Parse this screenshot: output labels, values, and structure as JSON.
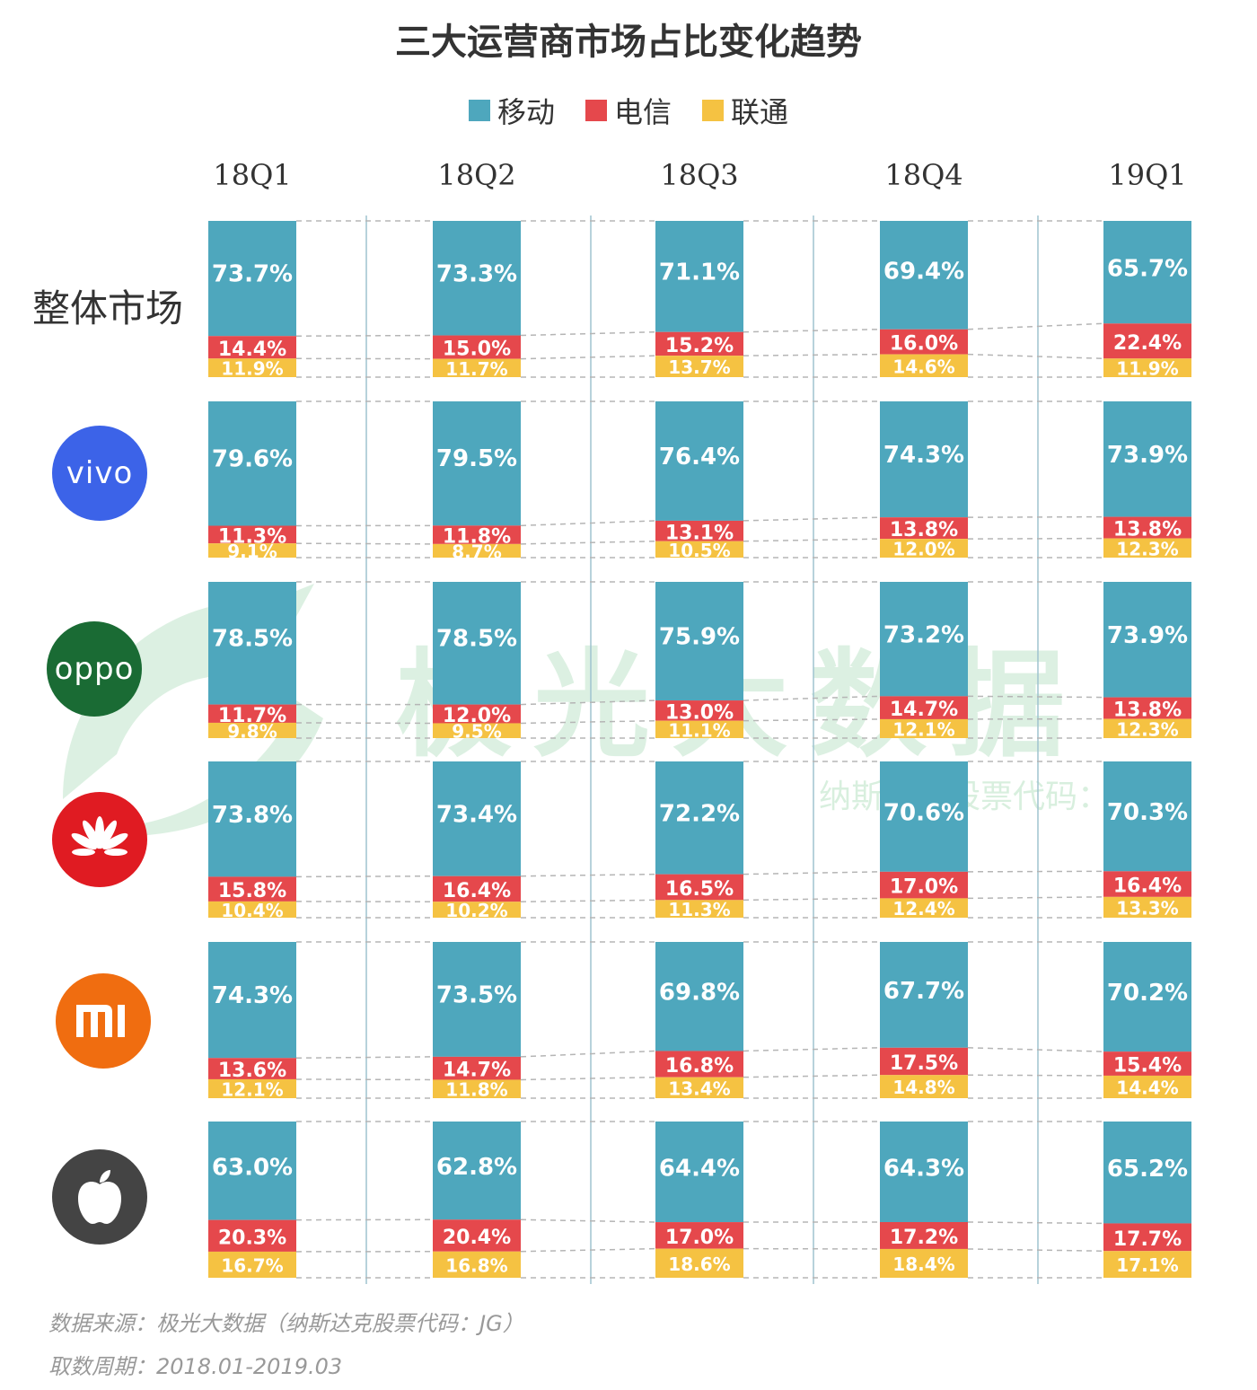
{
  "title": "三大运营商市场占比变化趋势",
  "colors": {
    "移动": "#4ea7bd",
    "电信": "#e5484c",
    "联通": "#f5c242"
  },
  "legend": [
    {
      "label": "移动",
      "color": "#4ea7bd"
    },
    {
      "label": "电信",
      "color": "#e5484c"
    },
    {
      "label": "联通",
      "color": "#f5c242"
    }
  ],
  "row_labels": {
    "overall": "整体市场",
    "vivo": "vivo",
    "oppo": "oppo",
    "huawei": "华为",
    "mi": "mi",
    "apple": "苹果"
  },
  "watermark": {
    "main": "极光大数据",
    "sub": "纳斯达克股票代码：JG"
  },
  "footer": {
    "source": "数据来源：极光大数据（纳斯达克股票代码：JG）",
    "period": "取数周期：2018.01-2019.03"
  },
  "chart_data": {
    "type": "bar",
    "stacked": true,
    "categories": [
      "18Q1",
      "18Q2",
      "18Q3",
      "18Q4",
      "19Q1"
    ],
    "value_labels": {
      "overall": {
        "移动": [
          "73.7%",
          "73.3%",
          "71.1%",
          "69.4%",
          "65.7%"
        ],
        "电信": [
          "14.4%",
          "15.0%",
          "15.2%",
          "16.0%",
          "22.4%"
        ],
        "联通": [
          "11.9%",
          "11.7%",
          "13.7%",
          "14.6%",
          "11.9%"
        ]
      },
      "vivo": {
        "移动": [
          "79.6%",
          "79.5%",
          "76.4%",
          "74.3%",
          "73.9%"
        ],
        "电信": [
          "11.3%",
          "11.8%",
          "13.1%",
          "13.8%",
          "13.8%"
        ],
        "联通": [
          "9.1%",
          "8.7%",
          "10.5%",
          "12.0%",
          "12.3%"
        ]
      },
      "oppo": {
        "移动": [
          "78.5%",
          "78.5%",
          "75.9%",
          "73.2%",
          "73.9%"
        ],
        "电信": [
          "11.7%",
          "12.0%",
          "13.0%",
          "14.7%",
          "13.8%"
        ],
        "联通": [
          "9.8%",
          "9.5%",
          "11.1%",
          "12.1%",
          "12.3%"
        ]
      },
      "huawei": {
        "移动": [
          "73.8%",
          "73.4%",
          "72.2%",
          "70.6%",
          "70.3%"
        ],
        "电信": [
          "15.8%",
          "16.4%",
          "16.5%",
          "17.0%",
          "16.4%"
        ],
        "联通": [
          "10.4%",
          "10.2%",
          "11.3%",
          "12.4%",
          "13.3%"
        ]
      },
      "mi": {
        "移动": [
          "74.3%",
          "73.5%",
          "69.8%",
          "67.7%",
          "70.2%"
        ],
        "电信": [
          "13.6%",
          "14.7%",
          "16.8%",
          "17.5%",
          "15.4%"
        ],
        "联通": [
          "12.1%",
          "11.8%",
          "13.4%",
          "14.8%",
          "14.4%"
        ]
      },
      "apple": {
        "移动": [
          "63.0%",
          "62.8%",
          "64.4%",
          "64.3%",
          "65.2%"
        ],
        "电信": [
          "20.3%",
          "20.4%",
          "17.0%",
          "17.2%",
          "17.7%"
        ],
        "联通": [
          "16.7%",
          "16.8%",
          "18.6%",
          "18.4%",
          "17.1%"
        ]
      }
    },
    "groups": [
      {
        "name": "整体市场",
        "series": [
          {
            "name": "移动",
            "values": [
              73.7,
              73.3,
              71.1,
              69.4,
              65.7
            ]
          },
          {
            "name": "电信",
            "values": [
              14.4,
              15.0,
              15.2,
              16.0,
              22.4
            ]
          },
          {
            "name": "联通",
            "values": [
              11.9,
              11.7,
              13.7,
              14.6,
              11.9
            ]
          }
        ]
      },
      {
        "name": "vivo",
        "series": [
          {
            "name": "移动",
            "values": [
              79.6,
              79.5,
              76.4,
              74.3,
              73.9
            ]
          },
          {
            "name": "电信",
            "values": [
              11.3,
              11.8,
              13.1,
              13.8,
              13.8
            ]
          },
          {
            "name": "联通",
            "values": [
              9.1,
              8.7,
              10.5,
              12.0,
              12.3
            ]
          }
        ]
      },
      {
        "name": "oppo",
        "series": [
          {
            "name": "移动",
            "values": [
              78.5,
              78.5,
              75.9,
              73.2,
              73.9
            ]
          },
          {
            "name": "电信",
            "values": [
              11.7,
              12.0,
              13.0,
              14.7,
              13.8
            ]
          },
          {
            "name": "联通",
            "values": [
              9.8,
              9.5,
              11.1,
              12.1,
              12.3
            ]
          }
        ]
      },
      {
        "name": "华为",
        "series": [
          {
            "name": "移动",
            "values": [
              73.8,
              73.4,
              72.2,
              70.6,
              70.3
            ]
          },
          {
            "name": "电信",
            "values": [
              15.8,
              16.4,
              16.5,
              17.0,
              16.4
            ]
          },
          {
            "name": "联通",
            "values": [
              10.4,
              10.2,
              11.3,
              12.4,
              13.3
            ]
          }
        ]
      },
      {
        "name": "小米",
        "series": [
          {
            "name": "移动",
            "values": [
              74.3,
              73.5,
              69.8,
              67.7,
              70.2
            ]
          },
          {
            "name": "电信",
            "values": [
              13.6,
              14.7,
              16.8,
              17.5,
              15.4
            ]
          },
          {
            "name": "联通",
            "values": [
              12.1,
              11.8,
              13.4,
              14.8,
              14.4
            ]
          }
        ]
      },
      {
        "name": "苹果",
        "series": [
          {
            "name": "移动",
            "values": [
              63.0,
              62.8,
              64.4,
              64.3,
              65.2
            ]
          },
          {
            "name": "电信",
            "values": [
              20.3,
              20.4,
              17.0,
              17.2,
              17.7
            ]
          },
          {
            "name": "联通",
            "values": [
              16.7,
              16.8,
              18.6,
              18.4,
              17.1
            ]
          }
        ]
      }
    ],
    "ylim": [
      0,
      100
    ],
    "legend_position": "top-center",
    "grid": false
  }
}
